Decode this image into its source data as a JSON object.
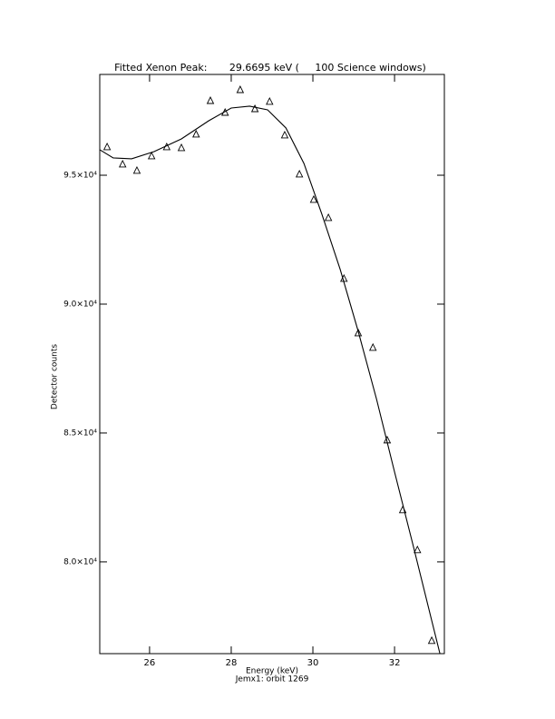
{
  "chart_data": {
    "type": "scatter",
    "title": "Fitted Xenon Peak:       29.6695 keV (     100 Science windows)",
    "x_label": "Energy (keV)",
    "subtitle": "Jemx1: orbit 1269",
    "y_label": "Detector counts",
    "xlim": [
      24.78,
      33.22
    ],
    "xticks": [
      26,
      28,
      30,
      32
    ],
    "ylim": [
      76440,
      98910
    ],
    "yticks": [
      {
        "value": 80000,
        "label": "8.0×10⁴"
      },
      {
        "value": 85000,
        "label": "8.5×10⁴"
      },
      {
        "value": 90000,
        "label": "9.0×10⁴"
      },
      {
        "value": 95000,
        "label": "9.5×10⁴"
      }
    ],
    "color": "#000000",
    "series": [
      {
        "type": "scatter",
        "marker": "triangle",
        "x": [
          24.96,
          25.34,
          25.69,
          26.05,
          26.42,
          26.78,
          27.14,
          27.49,
          27.85,
          28.22,
          28.58,
          28.94,
          29.31,
          29.67,
          30.02,
          30.38,
          30.76,
          31.11,
          31.47,
          31.82,
          32.2,
          32.56,
          32.91
        ],
        "values": [
          96093,
          95424,
          95178,
          95741,
          96093,
          96058,
          96586,
          97889,
          97431,
          98311,
          97572,
          97854,
          96551,
          95037,
          94051,
          93347,
          90988,
          88875,
          88312,
          84721,
          82010,
          80461,
          76940
        ]
      },
      {
        "type": "line",
        "x": [
          24.78,
          25.11,
          25.56,
          26.11,
          26.78,
          27.45,
          28.0,
          28.45,
          28.89,
          29.34,
          29.78,
          30.22,
          30.67,
          31.11,
          31.56,
          32.0,
          32.45,
          32.89,
          33.11
        ],
        "values": [
          95988,
          95671,
          95636,
          95917,
          96410,
          97114,
          97607,
          97678,
          97537,
          96833,
          95459,
          93488,
          91340,
          88946,
          86305,
          83488,
          80672,
          77855,
          76447
        ]
      }
    ]
  }
}
